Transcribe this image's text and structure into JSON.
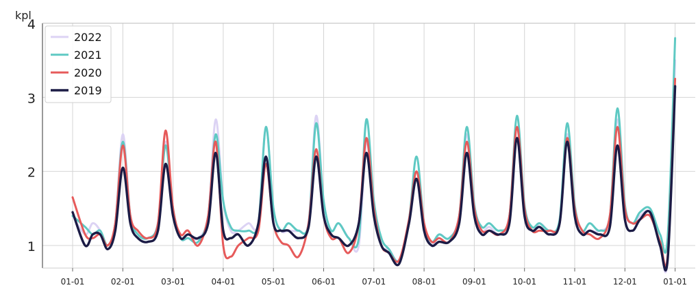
{
  "chart_data": {
    "type": "line",
    "ylabel": "kpl",
    "ylim": [
      0.6,
      4
    ],
    "yticks": [
      1,
      2,
      3,
      4
    ],
    "x_ticks": [
      "01-01",
      "02-01",
      "03-01",
      "04-01",
      "05-01",
      "06-01",
      "07-01",
      "08-01",
      "09-01",
      "10-01",
      "11-01",
      "12-01",
      "01-01"
    ],
    "grid": true,
    "legend_position": "top-left",
    "series": [
      {
        "name": "2022",
        "color": "#dcd3f4",
        "width": 3,
        "x": [
          0,
          0.25,
          0.4,
          0.55,
          0.7,
          0.85,
          1,
          1.15,
          1.3,
          1.5,
          1.7,
          1.85,
          2,
          2.15,
          2.3,
          2.5,
          2.7,
          2.85,
          3,
          3.15,
          3.3,
          3.5,
          3.7,
          3.85,
          4,
          4.15,
          4.3,
          4.5,
          4.7,
          4.85,
          5,
          5.15,
          5.3,
          5.5,
          5.7,
          5.85,
          6,
          6.15,
          6.3,
          6.5,
          6.7,
          6.85,
          7,
          7.15,
          7.3,
          7.5,
          7.7,
          7.85,
          8,
          8.15,
          8.3,
          8.5,
          8.7,
          8.85,
          9,
          9.15,
          9.3,
          9.5,
          9.7,
          9.85,
          10,
          10.15,
          10.3,
          10.5,
          10.7,
          10.85,
          11,
          11.15,
          11.3,
          11.5,
          11.7,
          11.85,
          12
        ],
        "values": [
          1.4,
          1.15,
          1.3,
          1.2,
          1.0,
          1.3,
          2.5,
          1.4,
          1.15,
          1.1,
          1.3,
          2.4,
          1.5,
          1.1,
          1.1,
          1.1,
          1.4,
          2.7,
          1.6,
          1.2,
          1.2,
          1.3,
          1.3,
          2.6,
          1.5,
          1.2,
          1.2,
          1.2,
          1.3,
          2.75,
          1.6,
          1.2,
          1.3,
          1.1,
          1.0,
          2.4,
          1.5,
          1.0,
          0.95,
          0.8,
          1.3,
          2.0,
          1.3,
          1.0,
          1.15,
          1.1,
          1.4,
          2.5,
          1.5,
          1.2,
          1.25,
          1.15,
          1.4,
          2.6,
          1.5,
          1.2,
          1.3,
          1.2,
          1.3,
          2.5,
          1.5,
          1.2,
          1.2,
          1.2,
          1.4,
          2.7,
          1.5,
          1.3,
          1.4,
          1.45,
          1.0,
          0.8,
          3.5
        ]
      },
      {
        "name": "2021",
        "color": "#5ec9c3",
        "width": 3,
        "x": [
          0,
          0.25,
          0.4,
          0.55,
          0.7,
          0.85,
          1,
          1.15,
          1.3,
          1.5,
          1.7,
          1.85,
          2,
          2.15,
          2.3,
          2.5,
          2.7,
          2.85,
          3,
          3.15,
          3.3,
          3.5,
          3.7,
          3.85,
          4,
          4.15,
          4.3,
          4.5,
          4.7,
          4.85,
          5,
          5.15,
          5.3,
          5.5,
          5.7,
          5.85,
          6,
          6.15,
          6.3,
          6.5,
          6.7,
          6.85,
          7,
          7.15,
          7.3,
          7.5,
          7.7,
          7.85,
          8,
          8.15,
          8.3,
          8.5,
          8.7,
          8.85,
          9,
          9.15,
          9.3,
          9.5,
          9.7,
          9.85,
          10,
          10.15,
          10.3,
          10.5,
          10.7,
          10.85,
          11,
          11.15,
          11.3,
          11.5,
          11.7,
          11.85,
          12
        ],
        "values": [
          1.4,
          1.25,
          1.15,
          1.2,
          1.0,
          1.3,
          2.4,
          1.4,
          1.15,
          1.1,
          1.3,
          2.35,
          1.5,
          1.1,
          1.1,
          1.05,
          1.4,
          2.5,
          1.6,
          1.25,
          1.2,
          1.2,
          1.3,
          2.6,
          1.5,
          1.2,
          1.3,
          1.2,
          1.3,
          2.65,
          1.6,
          1.2,
          1.3,
          1.1,
          1.1,
          2.7,
          1.6,
          1.1,
          0.95,
          0.8,
          1.35,
          2.2,
          1.3,
          1.05,
          1.15,
          1.1,
          1.4,
          2.6,
          1.55,
          1.25,
          1.3,
          1.2,
          1.4,
          2.75,
          1.55,
          1.25,
          1.3,
          1.2,
          1.35,
          2.65,
          1.55,
          1.2,
          1.3,
          1.2,
          1.4,
          2.85,
          1.55,
          1.3,
          1.45,
          1.5,
          1.15,
          1.1,
          3.8
        ]
      },
      {
        "name": "2020",
        "color": "#e65a5a",
        "width": 3,
        "x": [
          0,
          0.25,
          0.4,
          0.55,
          0.7,
          0.85,
          1,
          1.15,
          1.3,
          1.5,
          1.7,
          1.85,
          2,
          2.15,
          2.3,
          2.5,
          2.7,
          2.85,
          3,
          3.15,
          3.3,
          3.5,
          3.7,
          3.85,
          4,
          4.15,
          4.3,
          4.5,
          4.7,
          4.85,
          5,
          5.15,
          5.3,
          5.5,
          5.7,
          5.85,
          6,
          6.15,
          6.3,
          6.5,
          6.7,
          6.85,
          7,
          7.15,
          7.3,
          7.5,
          7.7,
          7.85,
          8,
          8.15,
          8.3,
          8.5,
          8.7,
          8.85,
          9,
          9.15,
          9.3,
          9.5,
          9.7,
          9.85,
          10,
          10.15,
          10.3,
          10.5,
          10.7,
          10.85,
          11,
          11.15,
          11.3,
          11.5,
          11.7,
          11.85,
          12
        ],
        "values": [
          1.65,
          1.15,
          1.1,
          1.15,
          1.0,
          1.3,
          2.35,
          1.4,
          1.2,
          1.1,
          1.3,
          2.55,
          1.5,
          1.15,
          1.2,
          1.0,
          1.4,
          2.4,
          1.0,
          0.85,
          1.0,
          1.1,
          1.2,
          2.1,
          1.3,
          1.05,
          1.0,
          0.85,
          1.3,
          2.3,
          1.4,
          1.1,
          1.1,
          0.9,
          1.3,
          2.45,
          1.5,
          1.0,
          0.9,
          0.8,
          1.35,
          2.0,
          1.3,
          1.05,
          1.1,
          1.05,
          1.4,
          2.4,
          1.5,
          1.2,
          1.2,
          1.15,
          1.4,
          2.6,
          1.5,
          1.2,
          1.2,
          1.2,
          1.3,
          2.45,
          1.5,
          1.2,
          1.15,
          1.1,
          1.4,
          2.6,
          1.5,
          1.3,
          1.35,
          1.4,
          1.05,
          0.85,
          3.25
        ]
      },
      {
        "name": "2019",
        "color": "#1b1b45",
        "width": 3.4,
        "x": [
          0,
          0.25,
          0.4,
          0.55,
          0.7,
          0.85,
          1,
          1.15,
          1.3,
          1.5,
          1.7,
          1.85,
          2,
          2.15,
          2.3,
          2.5,
          2.7,
          2.85,
          3,
          3.15,
          3.3,
          3.5,
          3.7,
          3.85,
          4,
          4.15,
          4.3,
          4.5,
          4.7,
          4.85,
          5,
          5.15,
          5.3,
          5.5,
          5.7,
          5.85,
          6,
          6.15,
          6.3,
          6.5,
          6.7,
          6.85,
          7,
          7.15,
          7.3,
          7.5,
          7.7,
          7.85,
          8,
          8.15,
          8.3,
          8.5,
          8.7,
          8.85,
          9,
          9.15,
          9.3,
          9.5,
          9.7,
          9.85,
          10,
          10.15,
          10.3,
          10.5,
          10.7,
          10.85,
          11,
          11.15,
          11.3,
          11.5,
          11.7,
          11.85,
          12
        ],
        "values": [
          1.45,
          1.0,
          1.15,
          1.15,
          0.95,
          1.2,
          2.05,
          1.3,
          1.1,
          1.05,
          1.2,
          2.1,
          1.4,
          1.1,
          1.15,
          1.1,
          1.3,
          2.25,
          1.2,
          1.1,
          1.15,
          1.0,
          1.3,
          2.2,
          1.3,
          1.2,
          1.2,
          1.1,
          1.25,
          2.2,
          1.4,
          1.15,
          1.1,
          1.0,
          1.3,
          2.25,
          1.4,
          1.0,
          0.9,
          0.75,
          1.3,
          1.9,
          1.2,
          1.0,
          1.05,
          1.05,
          1.3,
          2.25,
          1.4,
          1.15,
          1.2,
          1.15,
          1.3,
          2.45,
          1.4,
          1.2,
          1.25,
          1.15,
          1.3,
          2.4,
          1.4,
          1.15,
          1.2,
          1.15,
          1.25,
          2.35,
          1.35,
          1.2,
          1.35,
          1.45,
          1.0,
          0.8,
          3.15
        ]
      }
    ]
  }
}
